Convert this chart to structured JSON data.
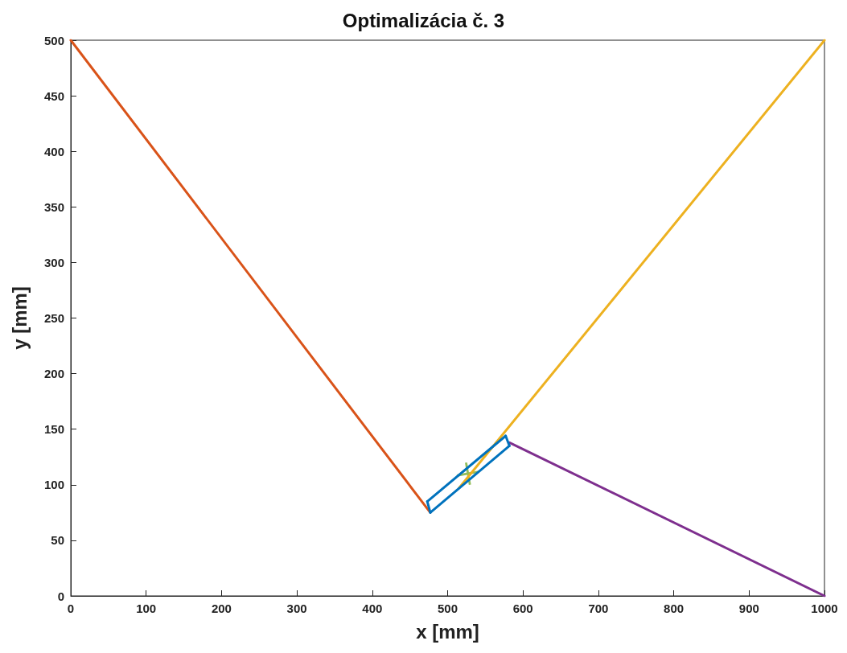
{
  "chart_data": {
    "type": "line",
    "title": "Optimalizácia č. 3",
    "xlabel": "x [mm]",
    "ylabel": "y [mm]",
    "xlim": [
      0,
      1000
    ],
    "ylim": [
      0,
      500
    ],
    "xticks": [
      0,
      100,
      200,
      300,
      400,
      500,
      600,
      700,
      800,
      900,
      1000
    ],
    "yticks": [
      0,
      50,
      100,
      150,
      200,
      250,
      300,
      350,
      400,
      450,
      500
    ],
    "grid": false,
    "marker": "none",
    "line_style": "solid",
    "series": [
      {
        "color": "#d95319",
        "x": [
          0,
          477
        ],
        "values": [
          500,
          75
        ]
      },
      {
        "color": "#edb120",
        "x": [
          1000,
          515
        ],
        "values": [
          500,
          97
        ]
      },
      {
        "color": "#7e2f8e",
        "x": [
          582,
          1000
        ],
        "values": [
          138,
          0
        ]
      },
      {
        "color": "#0072bd",
        "x": [
          473,
          477
        ],
        "values": [
          85,
          75
        ]
      },
      {
        "color": "#0072bd",
        "x": [
          473,
          577
        ],
        "values": [
          85,
          144
        ]
      },
      {
        "color": "#0072bd",
        "x": [
          577,
          582
        ],
        "values": [
          144,
          135
        ]
      },
      {
        "color": "#0072bd",
        "x": [
          477,
          582
        ],
        "values": [
          75,
          135
        ]
      },
      {
        "type": "scatter",
        "marker": "cross",
        "color": "#77ac30",
        "x": [
          527
        ],
        "values": [
          110
        ]
      }
    ]
  }
}
